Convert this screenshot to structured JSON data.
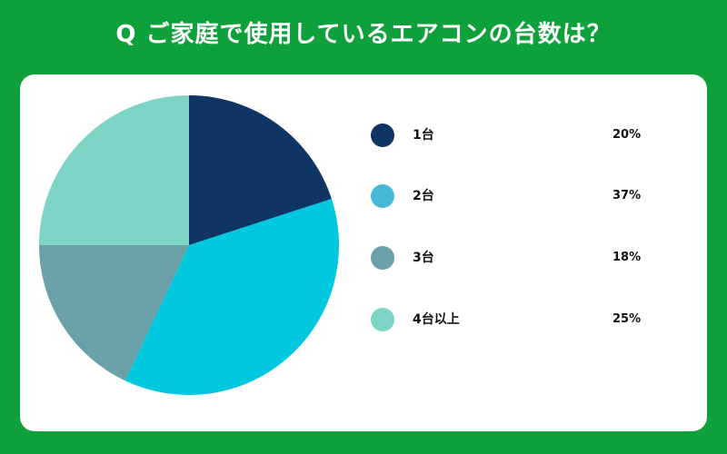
{
  "title": "Q ご家庭で使用しているエアコンの台数は？",
  "chart_data": {
    "type": "pie",
    "categories": [
      "1台",
      "2台",
      "3台",
      "4台以上"
    ],
    "values": [
      20,
      37,
      18,
      25
    ],
    "value_labels": [
      "20%",
      "37%",
      "18%",
      "25%"
    ],
    "colors": [
      "#0f3565",
      "#00c8de",
      "#6aa0a8",
      "#7ed4c4"
    ],
    "legend_colors": [
      "#0f3565",
      "#48b8d8",
      "#6aa0a8",
      "#7ed4c4"
    ],
    "legend_position": "right"
  }
}
